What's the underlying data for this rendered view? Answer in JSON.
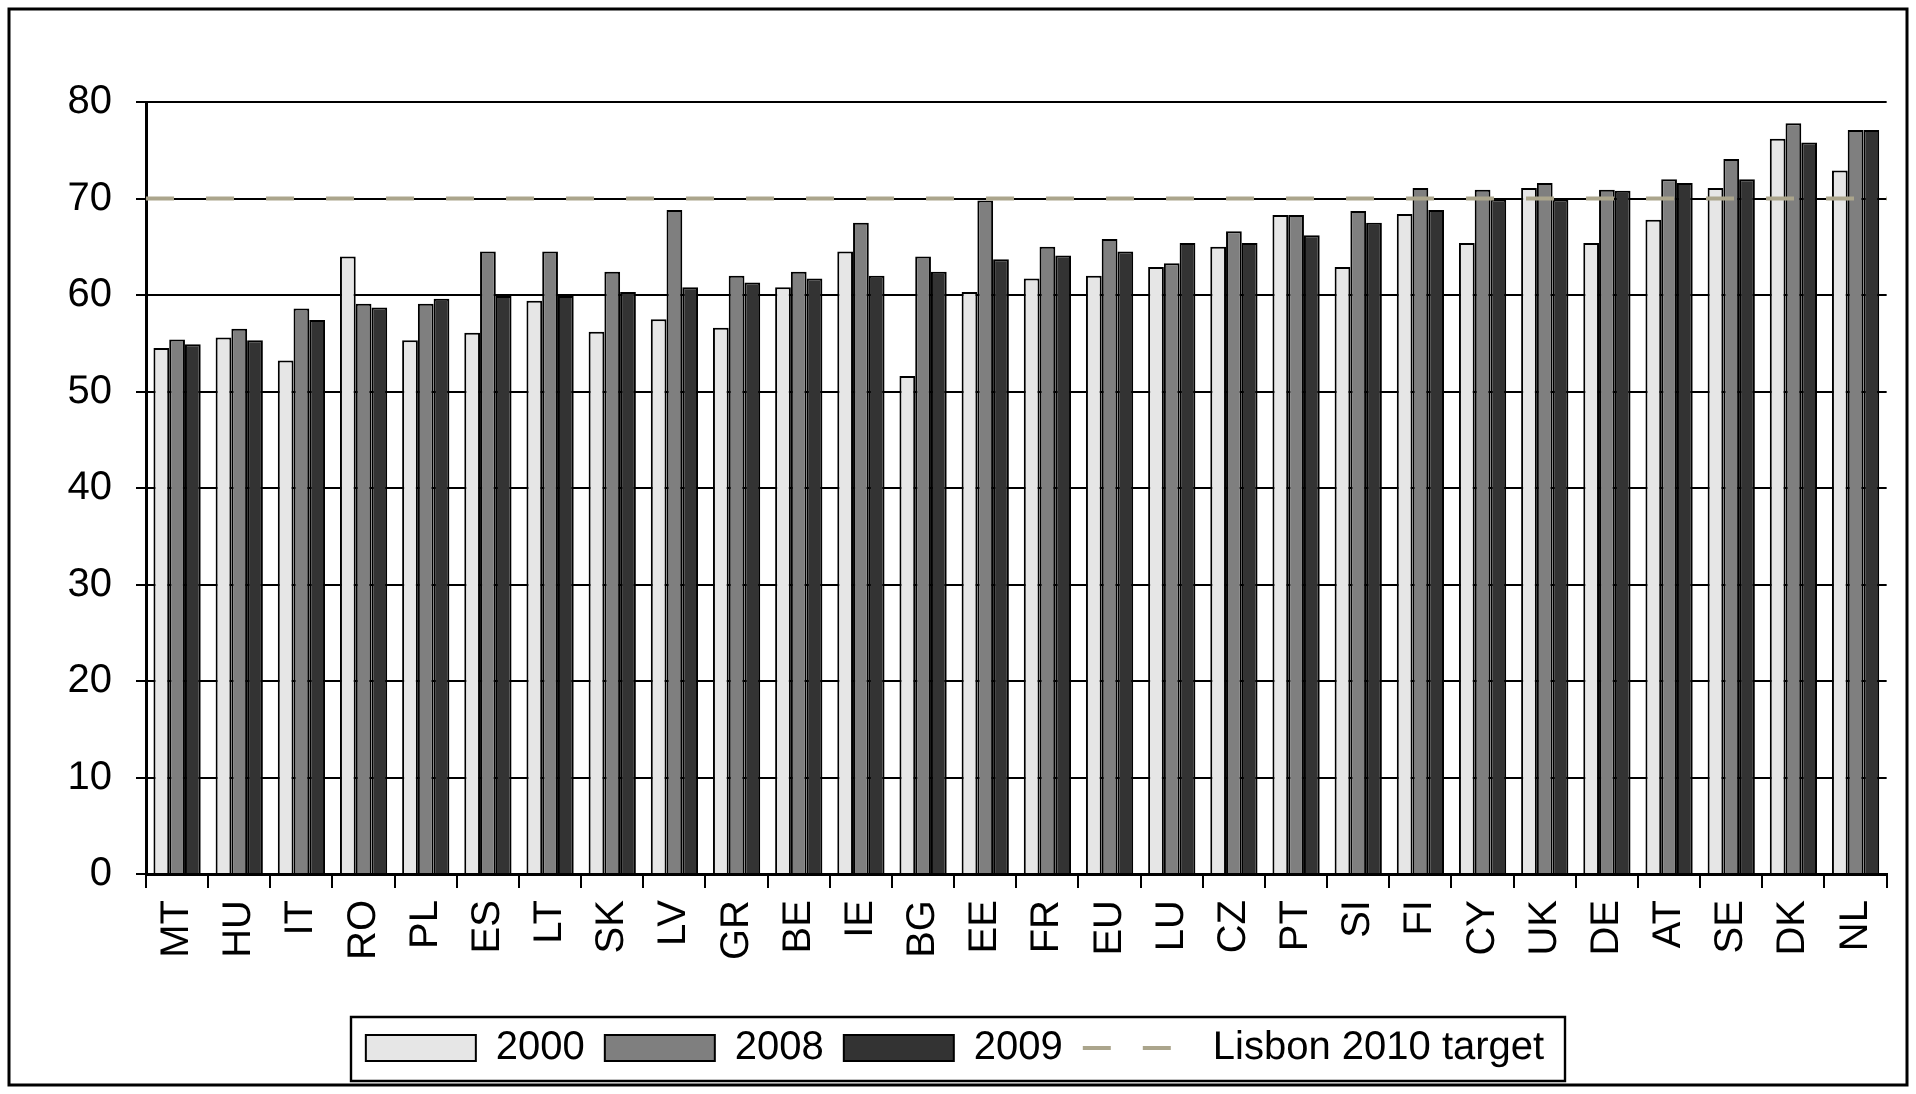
{
  "chart_data": {
    "type": "bar",
    "categories": [
      "MT",
      "HU",
      "IT",
      "RO",
      "PL",
      "ES",
      "LT",
      "SK",
      "LV",
      "GR",
      "BE",
      "IE",
      "BG",
      "EE",
      "FR",
      "EU",
      "LU",
      "CZ",
      "PT",
      "SI",
      "FI",
      "CY",
      "UK",
      "DE",
      "AT",
      "SE",
      "DK",
      "NL"
    ],
    "series": [
      {
        "name": "2000",
        "color": "#e6e6e6",
        "values": [
          54.5,
          55.6,
          53.2,
          64.0,
          55.3,
          56.1,
          59.4,
          56.2,
          57.5,
          56.6,
          60.8,
          64.5,
          51.6,
          60.3,
          61.7,
          62.0,
          62.9,
          65.0,
          68.3,
          62.9,
          68.4,
          65.4,
          71.1,
          65.4,
          67.8,
          71.1,
          76.2,
          72.9
        ]
      },
      {
        "name": "2008",
        "color": "#7f7f7f",
        "values": [
          55.4,
          56.5,
          58.6,
          59.1,
          59.1,
          64.5,
          64.5,
          62.4,
          68.8,
          62.0,
          62.4,
          67.5,
          64.0,
          69.8,
          65.0,
          65.8,
          63.3,
          66.6,
          68.3,
          68.7,
          71.1,
          70.9,
          71.6,
          70.9,
          72.0,
          74.1,
          77.8,
          77.1
        ]
      },
      {
        "name": "2009",
        "color": "#333333",
        "values": [
          54.9,
          55.3,
          57.4,
          58.7,
          59.6,
          59.9,
          59.9,
          60.3,
          60.8,
          61.3,
          61.7,
          62.0,
          62.4,
          63.7,
          64.1,
          64.5,
          65.4,
          65.4,
          66.2,
          67.5,
          68.8,
          69.9,
          69.9,
          70.8,
          71.6,
          72.0,
          75.8,
          77.1
        ]
      }
    ],
    "ylim": [
      0,
      80
    ],
    "yticks": [
      0,
      10,
      20,
      30,
      40,
      50,
      60,
      70,
      80
    ],
    "ref_lines": [
      {
        "axis": "y",
        "value": 70,
        "label": "Lisbon 2010 target",
        "color": "#aba58c",
        "line_style": "dashed"
      }
    ],
    "grid": "y",
    "legend": "bottom"
  }
}
